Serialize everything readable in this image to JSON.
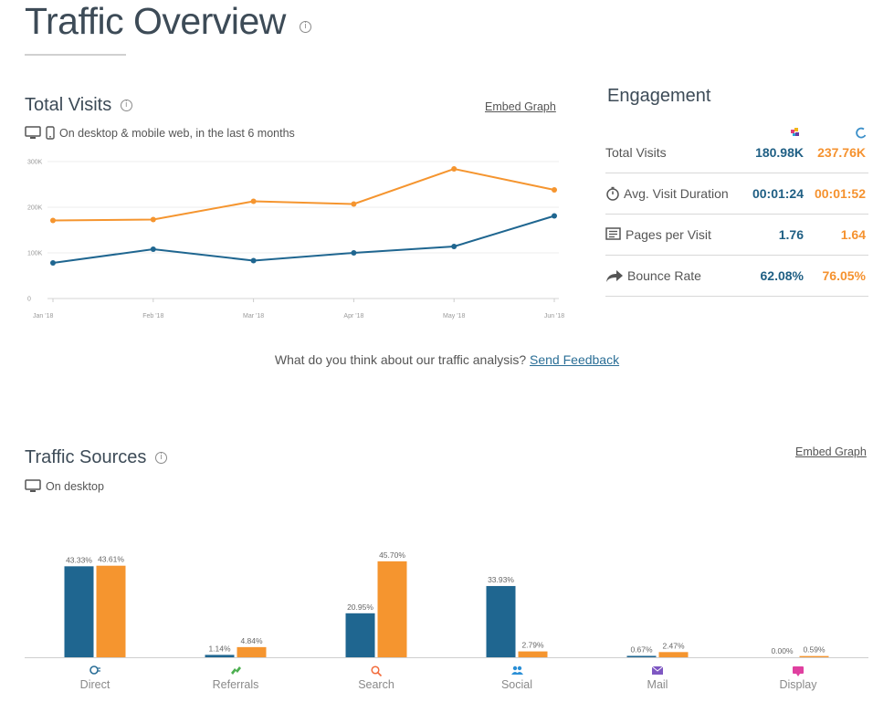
{
  "page": {
    "title": "Traffic Overview",
    "info_glyph": "i"
  },
  "colors": {
    "site_a": "#1f6690",
    "site_b": "#f5952f"
  },
  "total_visits": {
    "title": "Total Visits",
    "embed_label": "Embed Graph",
    "subtitle": "On desktop & mobile web, in the last 6 months",
    "icons": [
      "desktop-icon",
      "mobile-icon"
    ]
  },
  "engagement": {
    "title": "Engagement",
    "site_icons": [
      "site-a-favicon-icon",
      "site-b-favicon-icon"
    ],
    "rows": [
      {
        "label": "Total Visits",
        "icon": "",
        "v1": "180.98K",
        "v2": "237.76K"
      },
      {
        "label": "Avg. Visit Duration",
        "icon": "stopwatch-icon",
        "v1": "00:01:24",
        "v2": "00:01:52"
      },
      {
        "label": "Pages per Visit",
        "icon": "pages-icon",
        "v1": "1.76",
        "v2": "1.64"
      },
      {
        "label": "Bounce Rate",
        "icon": "bounce-arrow-icon",
        "v1": "62.08%",
        "v2": "76.05%"
      }
    ]
  },
  "feedback": {
    "question": "What do you think about our traffic analysis?",
    "link": "Send Feedback"
  },
  "traffic_sources": {
    "title": "Traffic Sources",
    "embed_label": "Embed Graph",
    "subtitle": "On desktop",
    "icons": {
      "Direct": "direct-icon",
      "Referrals": "referrals-icon",
      "Search": "search-icon",
      "Social": "social-icon",
      "Mail": "mail-icon",
      "Display": "display-icon"
    }
  },
  "chart_data": [
    {
      "type": "line",
      "x": [
        "Jan '18",
        "Feb '18",
        "Mar '18",
        "Apr '18",
        "May '18",
        "Jun '18"
      ],
      "y_ticks": [
        "0",
        "100K",
        "200K",
        "300K"
      ],
      "ylim": [
        0,
        300000
      ],
      "grid": true,
      "series": [
        {
          "values": [
            78000,
            108000,
            83000,
            100000,
            114000,
            181000
          ],
          "color": "#1f6690"
        },
        {
          "values": [
            171000,
            173000,
            213000,
            207000,
            284000,
            238000
          ],
          "color": "#f5952f"
        }
      ]
    },
    {
      "type": "bar",
      "categories": [
        "Direct",
        "Referrals",
        "Search",
        "Social",
        "Mail",
        "Display"
      ],
      "ylim": [
        0,
        50
      ],
      "series": [
        {
          "values": [
            43.33,
            1.14,
            20.95,
            33.93,
            0.67,
            0.0
          ],
          "labels": [
            "43.33%",
            "1.14%",
            "20.95%",
            "33.93%",
            "0.67%",
            "0.00%"
          ],
          "color": "#1f6690"
        },
        {
          "values": [
            43.61,
            4.84,
            45.7,
            2.79,
            2.47,
            0.59
          ],
          "labels": [
            "43.61%",
            "4.84%",
            "45.70%",
            "2.79%",
            "2.47%",
            "0.59%"
          ],
          "color": "#f5952f"
        }
      ]
    }
  ]
}
